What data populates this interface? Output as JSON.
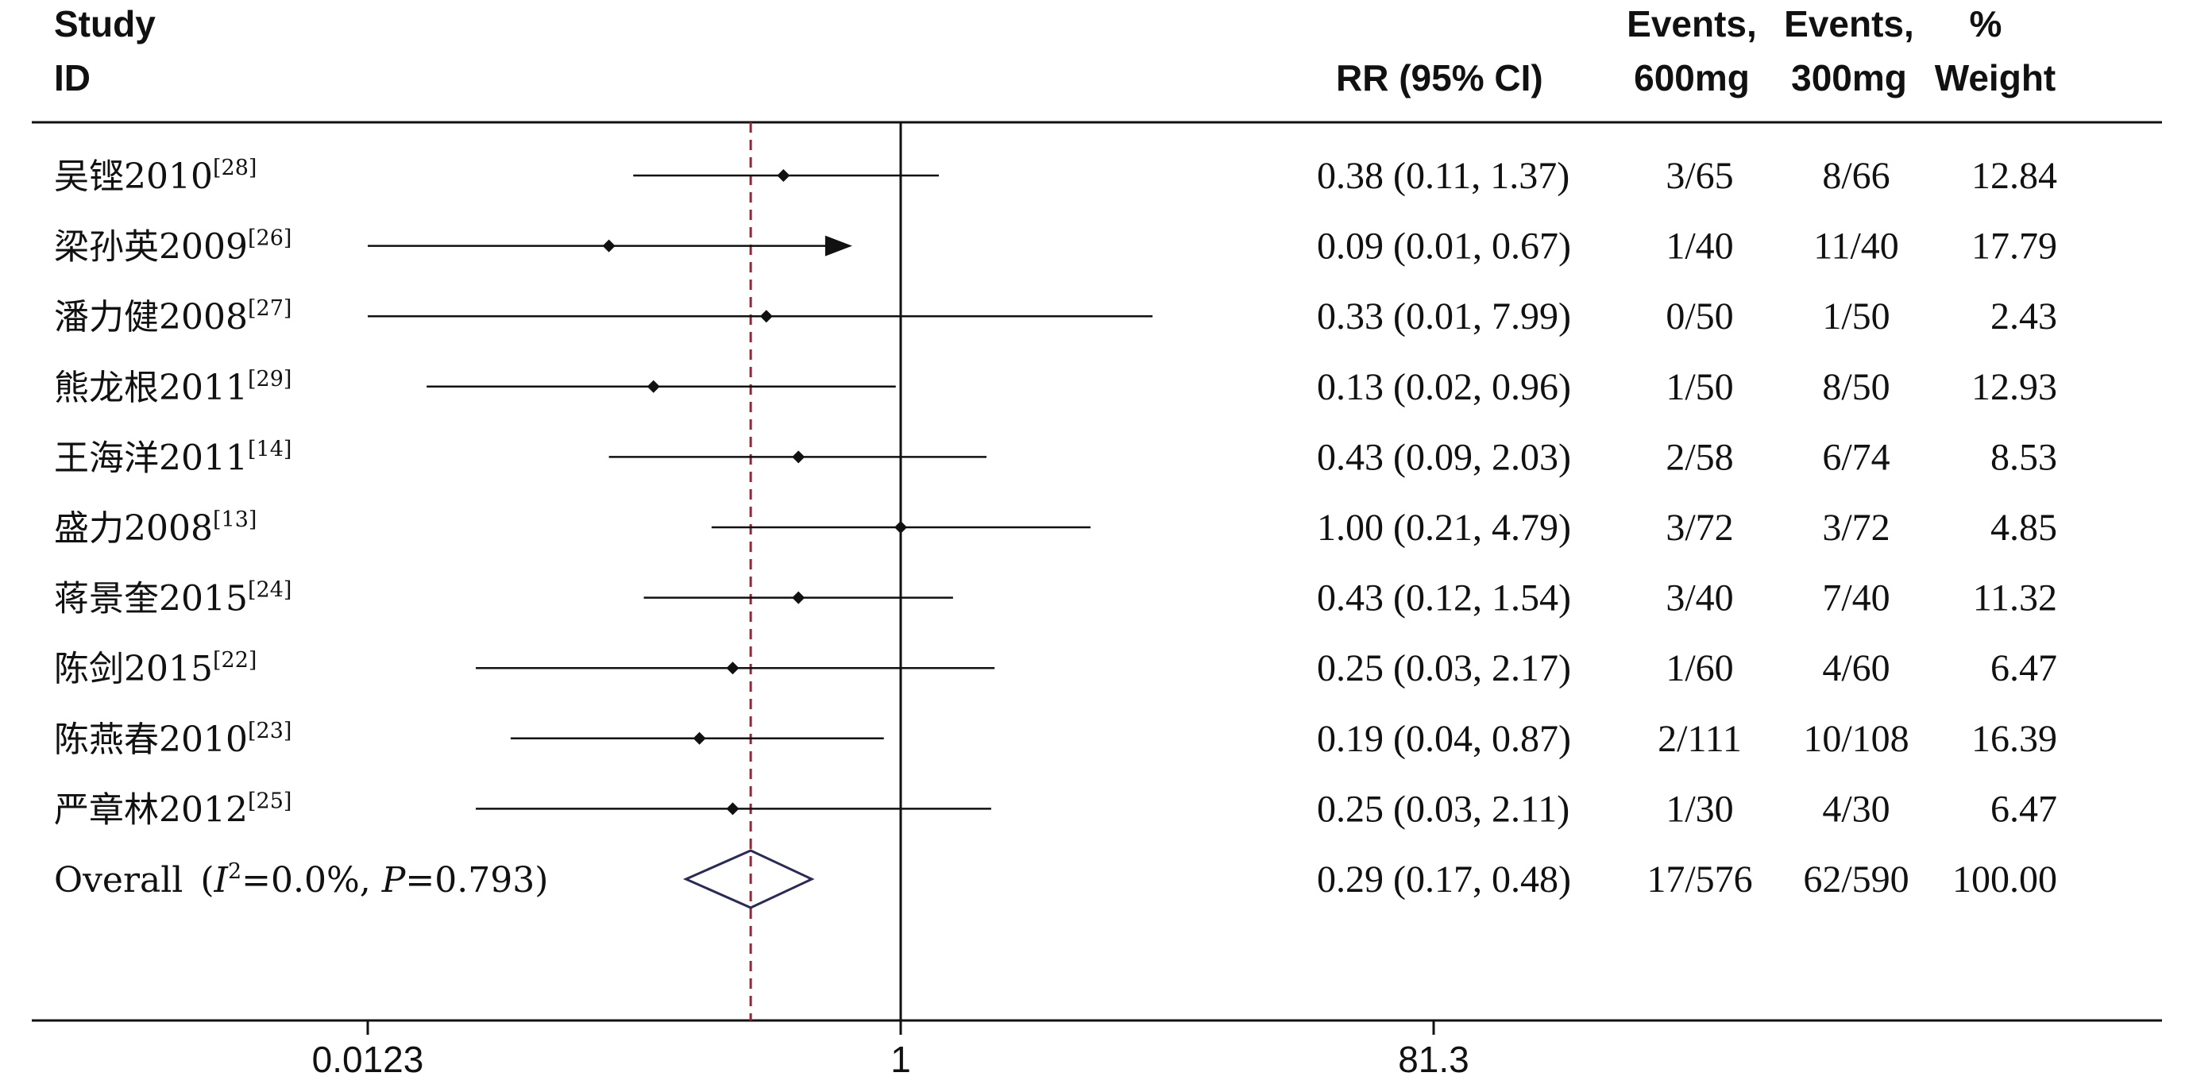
{
  "chart_data": {
    "type": "forest",
    "scale": "log",
    "xlim": [
      0.0123,
      81.3
    ],
    "xticks": [
      "0.0123",
      "1",
      "81.3"
    ],
    "reference_line": 1,
    "overall_line": 0.29,
    "columns": {
      "study": [
        "Study",
        "ID"
      ],
      "rr": "RR (95% CI)",
      "events_600": [
        "Events,",
        "600mg"
      ],
      "events_300": [
        "Events,",
        "300mg"
      ],
      "weight": [
        "%",
        "Weight"
      ]
    },
    "studies": [
      {
        "name": "吴铿2010",
        "ref": "[28]",
        "rr": 0.38,
        "lo": 0.11,
        "hi": 1.37,
        "rr_text": "0.38 (0.11, 1.37)",
        "e600": "3/65",
        "e300": "8/66",
        "weight": "12.84"
      },
      {
        "name": "梁孙英2009",
        "ref": "[26]",
        "rr": 0.09,
        "lo": 0.01,
        "hi": 0.67,
        "rr_text": "0.09 (0.01, 0.67)",
        "e600": "1/40",
        "e300": "11/40",
        "weight": "17.79",
        "arrow": true
      },
      {
        "name": "潘力健2008",
        "ref": "[27]",
        "rr": 0.33,
        "lo": 0.01,
        "hi": 7.99,
        "rr_text": "0.33 (0.01, 7.99)",
        "e600": "0/50",
        "e300": "1/50",
        "weight": "2.43"
      },
      {
        "name": "熊龙根2011",
        "ref": "[29]",
        "rr": 0.13,
        "lo": 0.02,
        "hi": 0.96,
        "rr_text": "0.13 (0.02, 0.96)",
        "e600": "1/50",
        "e300": "8/50",
        "weight": "12.93"
      },
      {
        "name": "王海洋2011",
        "ref": "[14]",
        "rr": 0.43,
        "lo": 0.09,
        "hi": 2.03,
        "rr_text": "0.43 (0.09, 2.03)",
        "e600": "2/58",
        "e300": "6/74",
        "weight": "8.53"
      },
      {
        "name": "盛力2008",
        "ref": "[13]",
        "rr": 1.0,
        "lo": 0.21,
        "hi": 4.79,
        "rr_text": "1.00 (0.21, 4.79)",
        "e600": "3/72",
        "e300": "3/72",
        "weight": "4.85"
      },
      {
        "name": "蒋景奎2015",
        "ref": "[24]",
        "rr": 0.43,
        "lo": 0.12,
        "hi": 1.54,
        "rr_text": "0.43 (0.12, 1.54)",
        "e600": "3/40",
        "e300": "7/40",
        "weight": "11.32"
      },
      {
        "name": "陈剑2015",
        "ref": "[22]",
        "rr": 0.25,
        "lo": 0.03,
        "hi": 2.17,
        "rr_text": "0.25 (0.03, 2.17)",
        "e600": "1/60",
        "e300": "4/60",
        "weight": "6.47"
      },
      {
        "name": "陈燕春2010",
        "ref": "[23]",
        "rr": 0.19,
        "lo": 0.04,
        "hi": 0.87,
        "rr_text": "0.19 (0.04, 0.87)",
        "e600": "2/111",
        "e300": "10/108",
        "weight": "16.39"
      },
      {
        "name": "严章林2012",
        "ref": "[25]",
        "rr": 0.25,
        "lo": 0.03,
        "hi": 2.11,
        "rr_text": "0.25 (0.03, 2.11)",
        "e600": "1/30",
        "e300": "4/30",
        "weight": "6.47"
      }
    ],
    "overall": {
      "label_prefix": "Overall (",
      "i_symbol": "I",
      "i_sup": "2",
      "i_value": "=0.0%, ",
      "p_symbol": "P",
      "p_value": "=0.793)",
      "rr": 0.29,
      "lo": 0.17,
      "hi": 0.48,
      "rr_text": "0.29 (0.17, 0.48)",
      "e600": "17/576",
      "e300": "62/590",
      "weight": "100.00"
    },
    "colors": {
      "ink": "#111111",
      "overall_line": "#8b2a3a",
      "diamond": "#2a2a5a"
    }
  }
}
